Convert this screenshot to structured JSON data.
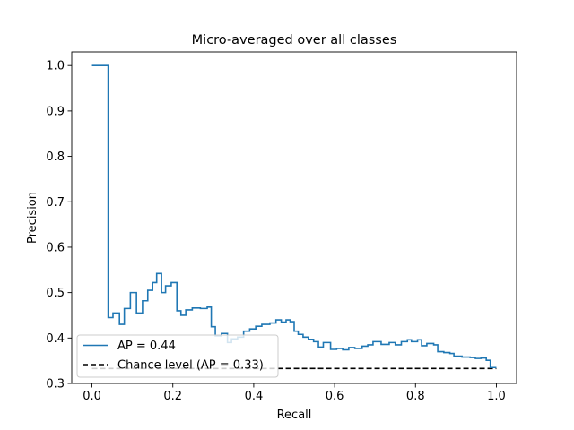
{
  "chart_data": {
    "type": "line",
    "title": "Micro-averaged over all classes",
    "xlabel": "Recall",
    "ylabel": "Precision",
    "xlim": [
      -0.05,
      1.05
    ],
    "ylim": [
      0.3,
      1.03
    ],
    "grid": false,
    "x_ticks": [
      0.0,
      0.2,
      0.4,
      0.6,
      0.8,
      1.0
    ],
    "x_tick_labels": [
      "0.0",
      "0.2",
      "0.4",
      "0.6",
      "0.8",
      "1.0"
    ],
    "y_ticks": [
      0.3,
      0.4,
      0.5,
      0.6,
      0.7,
      0.8,
      0.9,
      1.0
    ],
    "y_tick_labels": [
      "0.3",
      "0.4",
      "0.5",
      "0.6",
      "0.7",
      "0.8",
      "0.9",
      "1.0"
    ],
    "legend_position": "lower-left",
    "series": [
      {
        "name": "AP = 0.44",
        "style": "step",
        "color": "#1f77b4",
        "points": [
          [
            0.0,
            1.0
          ],
          [
            0.04,
            1.0
          ],
          [
            0.04,
            0.445
          ],
          [
            0.052,
            0.445
          ],
          [
            0.052,
            0.455
          ],
          [
            0.068,
            0.455
          ],
          [
            0.068,
            0.43
          ],
          [
            0.08,
            0.43
          ],
          [
            0.08,
            0.465
          ],
          [
            0.095,
            0.465
          ],
          [
            0.095,
            0.5
          ],
          [
            0.11,
            0.5
          ],
          [
            0.11,
            0.455
          ],
          [
            0.125,
            0.455
          ],
          [
            0.125,
            0.482
          ],
          [
            0.138,
            0.482
          ],
          [
            0.138,
            0.505
          ],
          [
            0.15,
            0.505
          ],
          [
            0.15,
            0.522
          ],
          [
            0.16,
            0.522
          ],
          [
            0.16,
            0.542
          ],
          [
            0.172,
            0.542
          ],
          [
            0.172,
            0.5
          ],
          [
            0.182,
            0.5
          ],
          [
            0.182,
            0.515
          ],
          [
            0.196,
            0.515
          ],
          [
            0.196,
            0.522
          ],
          [
            0.21,
            0.522
          ],
          [
            0.21,
            0.46
          ],
          [
            0.22,
            0.46
          ],
          [
            0.22,
            0.45
          ],
          [
            0.232,
            0.45
          ],
          [
            0.232,
            0.462
          ],
          [
            0.248,
            0.462
          ],
          [
            0.248,
            0.466
          ],
          [
            0.268,
            0.466
          ],
          [
            0.268,
            0.465
          ],
          [
            0.285,
            0.465
          ],
          [
            0.285,
            0.468
          ],
          [
            0.295,
            0.468
          ],
          [
            0.295,
            0.425
          ],
          [
            0.305,
            0.425
          ],
          [
            0.305,
            0.405
          ],
          [
            0.32,
            0.405
          ],
          [
            0.32,
            0.41
          ],
          [
            0.335,
            0.41
          ],
          [
            0.335,
            0.39
          ],
          [
            0.345,
            0.39
          ],
          [
            0.345,
            0.398
          ],
          [
            0.36,
            0.398
          ],
          [
            0.36,
            0.402
          ],
          [
            0.375,
            0.402
          ],
          [
            0.375,
            0.415
          ],
          [
            0.39,
            0.415
          ],
          [
            0.39,
            0.42
          ],
          [
            0.405,
            0.42
          ],
          [
            0.405,
            0.426
          ],
          [
            0.42,
            0.426
          ],
          [
            0.42,
            0.43
          ],
          [
            0.44,
            0.43
          ],
          [
            0.44,
            0.433
          ],
          [
            0.455,
            0.433
          ],
          [
            0.455,
            0.44
          ],
          [
            0.468,
            0.44
          ],
          [
            0.468,
            0.435
          ],
          [
            0.48,
            0.435
          ],
          [
            0.48,
            0.44
          ],
          [
            0.49,
            0.44
          ],
          [
            0.49,
            0.436
          ],
          [
            0.5,
            0.436
          ],
          [
            0.5,
            0.415
          ],
          [
            0.51,
            0.415
          ],
          [
            0.51,
            0.408
          ],
          [
            0.522,
            0.408
          ],
          [
            0.522,
            0.402
          ],
          [
            0.535,
            0.402
          ],
          [
            0.535,
            0.397
          ],
          [
            0.548,
            0.397
          ],
          [
            0.548,
            0.392
          ],
          [
            0.56,
            0.392
          ],
          [
            0.56,
            0.38
          ],
          [
            0.572,
            0.38
          ],
          [
            0.572,
            0.39
          ],
          [
            0.59,
            0.39
          ],
          [
            0.59,
            0.375
          ],
          [
            0.605,
            0.375
          ],
          [
            0.605,
            0.377
          ],
          [
            0.62,
            0.377
          ],
          [
            0.62,
            0.374
          ],
          [
            0.635,
            0.374
          ],
          [
            0.635,
            0.379
          ],
          [
            0.65,
            0.379
          ],
          [
            0.65,
            0.377
          ],
          [
            0.668,
            0.377
          ],
          [
            0.668,
            0.382
          ],
          [
            0.682,
            0.382
          ],
          [
            0.682,
            0.385
          ],
          [
            0.695,
            0.385
          ],
          [
            0.695,
            0.392
          ],
          [
            0.715,
            0.392
          ],
          [
            0.715,
            0.386
          ],
          [
            0.735,
            0.386
          ],
          [
            0.735,
            0.39
          ],
          [
            0.75,
            0.39
          ],
          [
            0.75,
            0.385
          ],
          [
            0.765,
            0.385
          ],
          [
            0.765,
            0.392
          ],
          [
            0.78,
            0.392
          ],
          [
            0.78,
            0.396
          ],
          [
            0.79,
            0.396
          ],
          [
            0.79,
            0.392
          ],
          [
            0.805,
            0.392
          ],
          [
            0.805,
            0.396
          ],
          [
            0.815,
            0.396
          ],
          [
            0.815,
            0.383
          ],
          [
            0.828,
            0.383
          ],
          [
            0.828,
            0.388
          ],
          [
            0.845,
            0.388
          ],
          [
            0.845,
            0.385
          ],
          [
            0.855,
            0.385
          ],
          [
            0.855,
            0.37
          ],
          [
            0.87,
            0.37
          ],
          [
            0.87,
            0.368
          ],
          [
            0.885,
            0.368
          ],
          [
            0.885,
            0.366
          ],
          [
            0.895,
            0.366
          ],
          [
            0.895,
            0.36
          ],
          [
            0.915,
            0.36
          ],
          [
            0.915,
            0.358
          ],
          [
            0.935,
            0.358
          ],
          [
            0.935,
            0.357
          ],
          [
            0.948,
            0.357
          ],
          [
            0.948,
            0.355
          ],
          [
            0.962,
            0.355
          ],
          [
            0.962,
            0.356
          ],
          [
            0.975,
            0.356
          ],
          [
            0.975,
            0.351
          ],
          [
            0.985,
            0.351
          ],
          [
            0.985,
            0.335
          ],
          [
            1.0,
            0.335
          ]
        ]
      },
      {
        "name": "Chance level (AP = 0.33)",
        "style": "dashed",
        "color": "#000000",
        "points": [
          [
            0.0,
            0.333
          ],
          [
            1.0,
            0.333
          ]
        ]
      }
    ]
  }
}
